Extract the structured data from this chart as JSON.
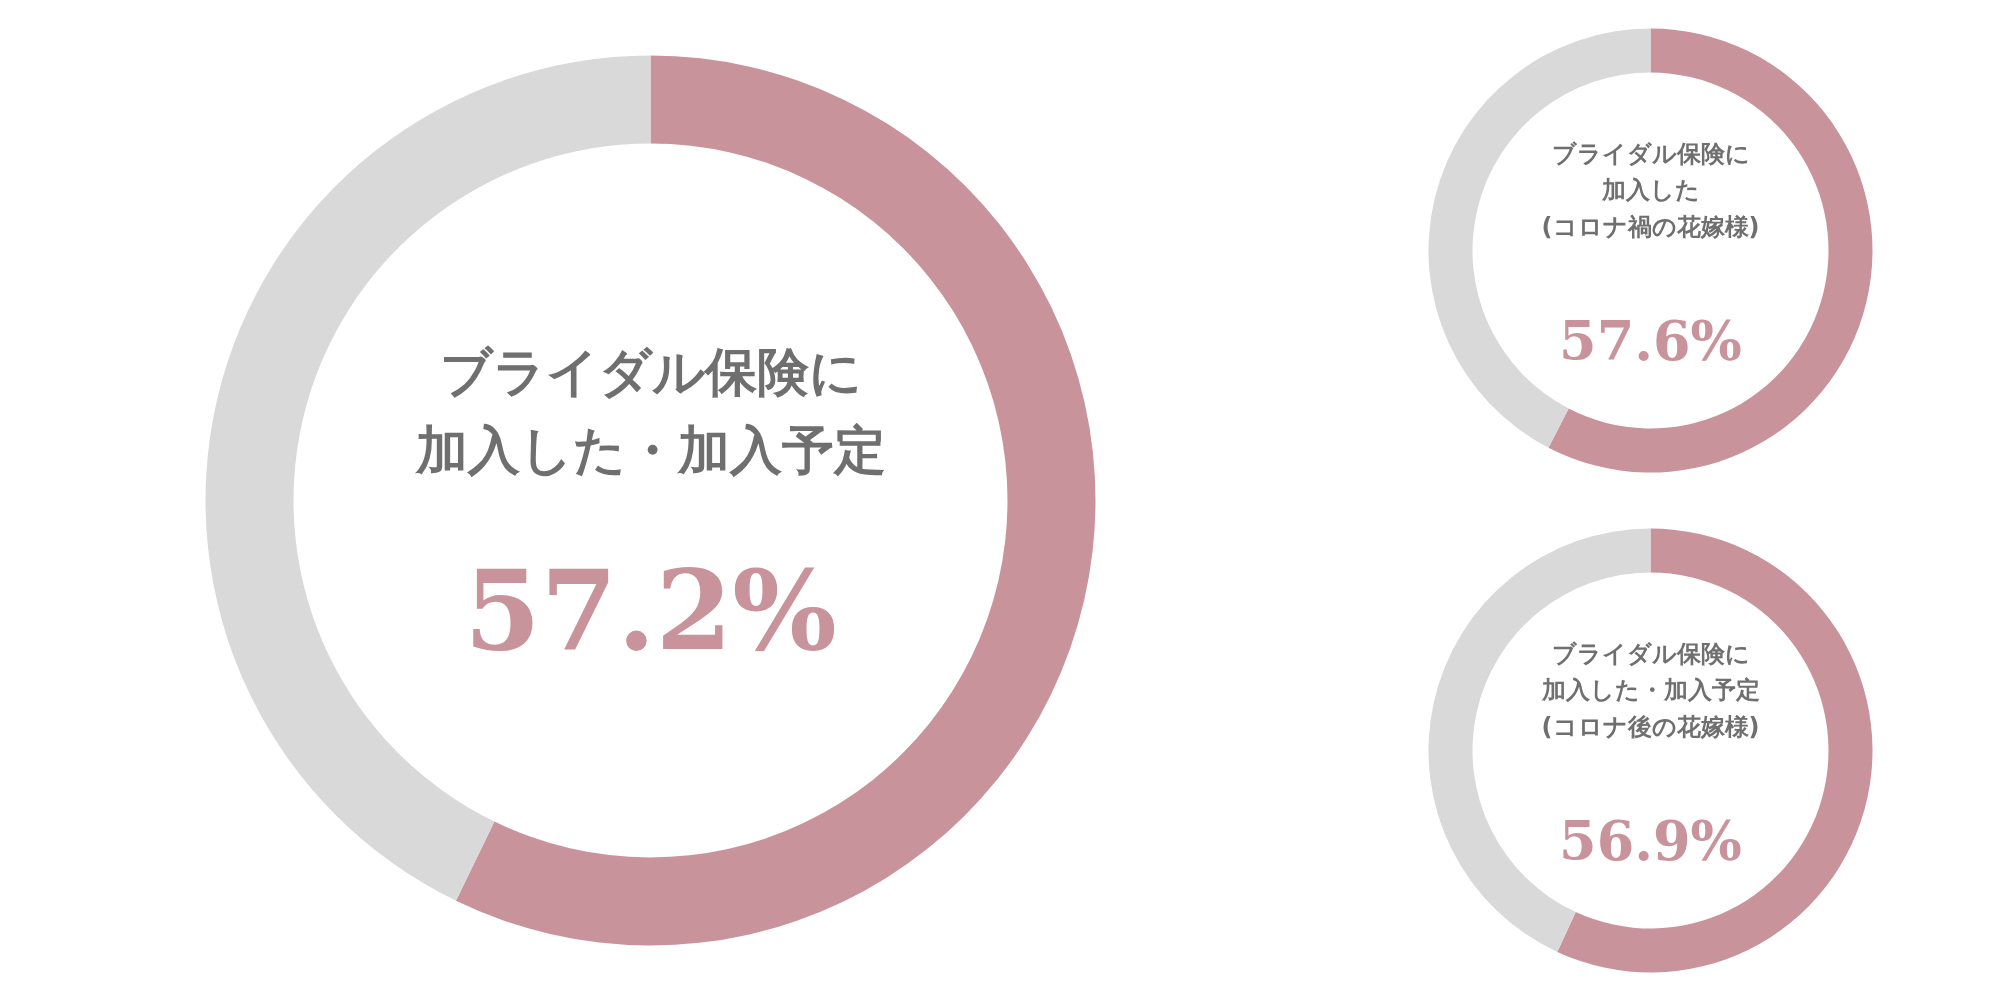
{
  "chart_data": [
    {
      "type": "donut",
      "title": "ブライダル保険に加入した・加入予定",
      "categories": [
        null,
        null
      ],
      "values": [
        57.2,
        42.8
      ],
      "colors": [
        "#c9939b",
        "#d9d9d9"
      ],
      "value_labels": [
        "57.2%",
        null
      ]
    },
    {
      "type": "donut",
      "title": "ブライダル保険に加入した",
      "subtitle": "(コロナ禍の花嫁様)",
      "categories": [
        null,
        null
      ],
      "values": [
        57.6,
        42.4
      ],
      "colors": [
        "#c9939b",
        "#d9d9d9"
      ],
      "value_labels": [
        "57.6%",
        null
      ]
    },
    {
      "type": "donut",
      "title": "ブライダル保険に加入した・加入予定",
      "subtitle": "(コロナ後の花嫁様)",
      "categories": [
        null,
        null
      ],
      "values": [
        56.9,
        43.1
      ],
      "colors": [
        "#c9939b",
        "#d9d9d9"
      ],
      "value_labels": [
        "56.9%",
        null
      ]
    }
  ]
}
